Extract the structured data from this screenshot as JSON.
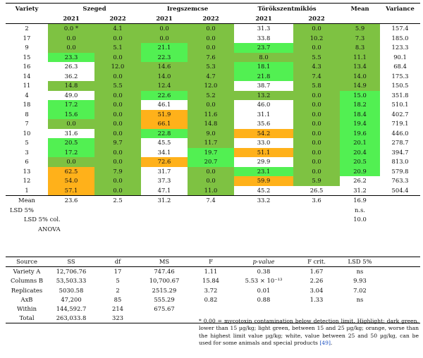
{
  "header": {
    "variety": "Variety",
    "szeged": "Szeged",
    "iregszemcse": "Iregszemcse",
    "torokszentmiklos": "Törökszentmiklós",
    "mean": "Mean",
    "variance": "Variance",
    "y2021": "2021",
    "y2022": "2022"
  },
  "legend_colors": {
    "dark_green": "#7ec242",
    "light_green": "#52f052",
    "orange": "#ffb11a",
    "white": "#ffffff"
  },
  "rows": [
    {
      "variety": "2",
      "c": [
        "0.0 *",
        "4.1",
        "0.0",
        "0.0",
        "31.3",
        "0.0"
      ],
      "mean": "5.9",
      "variance": "157.4",
      "h": [
        "dg",
        "dg",
        "dg",
        "dg",
        "wh",
        "dg"
      ],
      "mh": "dg"
    },
    {
      "variety": "17",
      "c": [
        "0.0",
        "0.0",
        "0.0",
        "0.0",
        "33.8",
        "10.2"
      ],
      "mean": "7.3",
      "variance": "185.0",
      "h": [
        "dg",
        "dg",
        "dg",
        "dg",
        "wh",
        "dg"
      ],
      "mh": "dg"
    },
    {
      "variety": "9",
      "c": [
        "0.0",
        "5.1",
        "21.1",
        "0.0",
        "23.7",
        "0.0"
      ],
      "mean": "8.3",
      "variance": "123.3",
      "h": [
        "dg",
        "dg",
        "lg",
        "dg",
        "lg",
        "dg"
      ],
      "mh": "dg"
    },
    {
      "variety": "15",
      "c": [
        "23.3",
        "0.0",
        "22.3",
        "7.6",
        "8.0",
        "5.5"
      ],
      "mean": "11.1",
      "variance": "90.1",
      "h": [
        "lg",
        "dg",
        "lg",
        "dg",
        "dg",
        "dg"
      ],
      "mh": "dg"
    },
    {
      "variety": "16",
      "c": [
        "26.3",
        "12.0",
        "14.6",
        "5.3",
        "18.1",
        "4.3"
      ],
      "mean": "13.4",
      "variance": "68.4",
      "h": [
        "wh",
        "dg",
        "dg",
        "dg",
        "lg",
        "dg"
      ],
      "mh": "dg"
    },
    {
      "variety": "14",
      "c": [
        "36.2",
        "0.0",
        "14.0",
        "4.7",
        "21.8",
        "7.4"
      ],
      "mean": "14.0",
      "variance": "175.3",
      "h": [
        "wh",
        "dg",
        "dg",
        "dg",
        "lg",
        "dg"
      ],
      "mh": "dg"
    },
    {
      "variety": "11",
      "c": [
        "14.8",
        "5.5",
        "12.4",
        "12.0",
        "38.7",
        "5.8"
      ],
      "mean": "14.9",
      "variance": "150.5",
      "h": [
        "dg",
        "dg",
        "dg",
        "dg",
        "wh",
        "dg"
      ],
      "mh": "dg"
    },
    {
      "variety": "4",
      "c": [
        "49.0",
        "0.0",
        "22.6",
        "5.2",
        "13.2",
        "0.0"
      ],
      "mean": "15.0",
      "variance": "351.8",
      "h": [
        "wh",
        "dg",
        "lg",
        "dg",
        "dg",
        "dg"
      ],
      "mh": "lg"
    },
    {
      "variety": "18",
      "c": [
        "17.2",
        "0.0",
        "46.1",
        "0.0",
        "46.0",
        "0.0"
      ],
      "mean": "18.2",
      "variance": "510.1",
      "h": [
        "lg",
        "dg",
        "wh",
        "dg",
        "wh",
        "dg"
      ],
      "mh": "lg"
    },
    {
      "variety": "8",
      "c": [
        "15.6",
        "0.0",
        "51.9",
        "11.6",
        "31.1",
        "0.0"
      ],
      "mean": "18.4",
      "variance": "402.7",
      "h": [
        "lg",
        "dg",
        "or",
        "dg",
        "wh",
        "dg"
      ],
      "mh": "lg"
    },
    {
      "variety": "7",
      "c": [
        "0.0",
        "0.0",
        "66.1",
        "14.8",
        "35.6",
        "0.0"
      ],
      "mean": "19.4",
      "variance": "719.1",
      "h": [
        "dg",
        "dg",
        "or",
        "dg",
        "wh",
        "dg"
      ],
      "mh": "lg"
    },
    {
      "variety": "10",
      "c": [
        "31.6",
        "0.0",
        "22.8",
        "9.0",
        "54.2",
        "0.0"
      ],
      "mean": "19.6",
      "variance": "446.0",
      "h": [
        "wh",
        "dg",
        "lg",
        "dg",
        "or",
        "dg"
      ],
      "mh": "lg"
    },
    {
      "variety": "5",
      "c": [
        "20.5",
        "9.7",
        "45.5",
        "11.7",
        "33.0",
        "0.0"
      ],
      "mean": "20.1",
      "variance": "278.7",
      "h": [
        "lg",
        "dg",
        "wh",
        "dg",
        "wh",
        "dg"
      ],
      "mh": "lg"
    },
    {
      "variety": "3",
      "c": [
        "17.2",
        "0.0",
        "34.1",
        "19.7",
        "51.1",
        "0.0"
      ],
      "mean": "20.4",
      "variance": "394.7",
      "h": [
        "lg",
        "dg",
        "wh",
        "lg",
        "or",
        "dg"
      ],
      "mh": "lg"
    },
    {
      "variety": "6",
      "c": [
        "0.0",
        "0.0",
        "72.6",
        "20.7",
        "29.9",
        "0.0"
      ],
      "mean": "20.5",
      "variance": "813.0",
      "h": [
        "dg",
        "dg",
        "or",
        "lg",
        "wh",
        "dg"
      ],
      "mh": "lg"
    },
    {
      "variety": "13",
      "c": [
        "62.5",
        "7.9",
        "31.7",
        "0.0",
        "23.1",
        "0.0"
      ],
      "mean": "20.9",
      "variance": "579.8",
      "h": [
        "or",
        "dg",
        "wh",
        "dg",
        "lg",
        "dg"
      ],
      "mh": "lg"
    },
    {
      "variety": "12",
      "c": [
        "54.0",
        "0.0",
        "37.3",
        "0.0",
        "59.9",
        "5.9"
      ],
      "mean": "26.2",
      "variance": "763.3",
      "h": [
        "or",
        "dg",
        "wh",
        "dg",
        "or",
        "dg"
      ],
      "mh": "wh"
    },
    {
      "variety": "1",
      "c": [
        "57.1",
        "0.0",
        "47.1",
        "11.0",
        "45.2",
        "26.5"
      ],
      "mean": "31.2",
      "variance": "504.4",
      "h": [
        "or",
        "dg",
        "wh",
        "dg",
        "wh",
        "wh"
      ],
      "mh": "wh"
    }
  ],
  "mean_row": {
    "label": "Mean",
    "c": [
      "23.6",
      "2.5",
      "31.2",
      "7.4",
      "33.2",
      "3.6"
    ],
    "mean": "16.9"
  },
  "lsd": {
    "lsd5_label": "LSD 5%",
    "lsd5_value": "n.s.",
    "lsd5col_label": "LSD 5% col.",
    "lsd5col_value": "10.0",
    "anova_label": "ANOVA"
  },
  "anova": {
    "headers": [
      "Source",
      "SS",
      "df",
      "MS",
      "F",
      "p-value",
      "F crit.",
      "LSD 5%"
    ],
    "rows": [
      [
        "Variety A",
        "12,706.76",
        "17",
        "747.46",
        "1.11",
        "0.38",
        "1.67",
        "ns"
      ],
      [
        "Columns B",
        "53,503.33",
        "5",
        "10,700.67",
        "15.84",
        "5.53 × 10⁻¹³",
        "2.26",
        "9.93"
      ],
      [
        "Replicates",
        "5030.58",
        "2",
        "2515.29",
        "3.72",
        "0.01",
        "3.04",
        "7.02"
      ],
      [
        "AxB",
        "47,200",
        "85",
        "555.29",
        "0.82",
        "0.88",
        "1.33",
        "ns"
      ],
      [
        "Within",
        "144,592.7",
        "214",
        "675.67",
        "",
        "",
        "",
        ""
      ],
      [
        "Total",
        "263,033.8",
        "323",
        "",
        "",
        "",
        "",
        ""
      ]
    ]
  },
  "footnote": {
    "text": "* 0.00 = mycotoxin contamination below detection limit. Highlight: dark green, lower than 15 µg/kg; light green, between 15 and 25 µg/kg; orange, worse than the highest limit value µg/kg; white, value between 25 and 50 µg/kg, can be used for some animals and special products",
    "ref": "[49]",
    "end": "."
  }
}
